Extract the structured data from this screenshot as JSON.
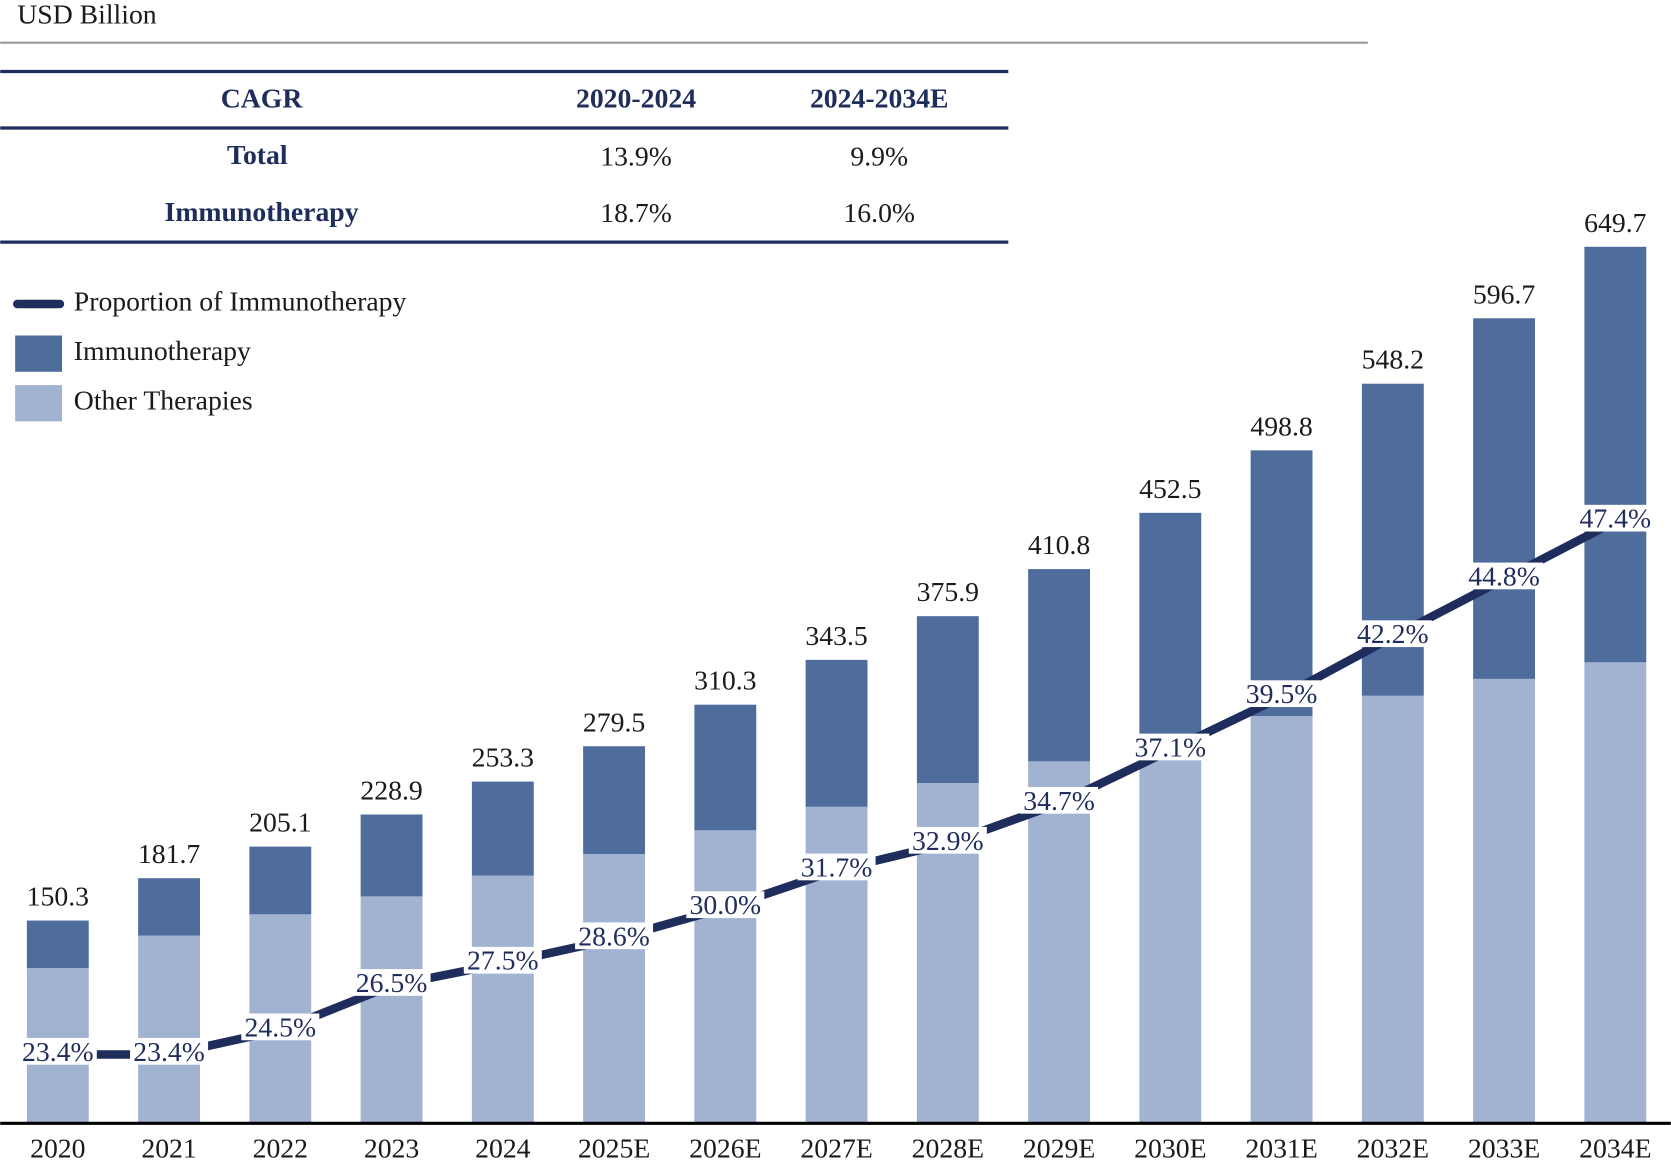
{
  "table": {
    "header": [
      "CAGR",
      "2020-2024",
      "2024-2034E"
    ],
    "rows": [
      [
        "Total",
        "13.9%",
        "9.9%"
      ],
      [
        "Immunotherapy",
        "18.7%",
        "16.0%"
      ]
    ]
  },
  "chart_data": {
    "type": "bar",
    "ylabel": "USD Billion",
    "stacked": true,
    "categories": [
      "2020",
      "2021",
      "2022",
      "2023",
      "2024",
      "2025E",
      "2026E",
      "2027E",
      "2028E",
      "2029E",
      "2030E",
      "2031E",
      "2032E",
      "2033E",
      "2034E"
    ],
    "series": [
      {
        "name": "Other Therapies",
        "type": "bar",
        "color": "#a2b3d2",
        "values": [
          115.1,
          139.2,
          154.9,
          168.2,
          183.6,
          199.6,
          217.2,
          234.6,
          252.2,
          268.3,
          284.6,
          301.8,
          316.9,
          329.4,
          341.7
        ]
      },
      {
        "name": "Immunotherapy",
        "type": "bar",
        "color": "#4e6d9c",
        "values": [
          35.2,
          42.5,
          50.2,
          60.7,
          69.7,
          79.9,
          93.1,
          108.9,
          123.7,
          142.5,
          167.9,
          197.0,
          231.3,
          267.3,
          308.0
        ]
      },
      {
        "name": "Proportion of Immunotherapy",
        "type": "line",
        "axis": "y2",
        "color": "#1f2d5c",
        "values": [
          23.4,
          23.4,
          24.5,
          26.5,
          27.5,
          28.6,
          30.0,
          31.7,
          32.9,
          34.7,
          37.1,
          39.5,
          42.2,
          44.8,
          47.4
        ],
        "value_labels": [
          "23.4%",
          "23.4%",
          "24.5%",
          "26.5%",
          "27.5%",
          "28.6%",
          "30.0%",
          "31.7%",
          "32.9%",
          "34.7%",
          "37.1%",
          "39.5%",
          "42.2%",
          "44.8%",
          "47.4%"
        ]
      }
    ],
    "totals": [
      150.3,
      181.7,
      205.1,
      228.9,
      253.3,
      279.5,
      310.3,
      343.5,
      375.9,
      410.8,
      452.5,
      498.8,
      548.2,
      596.7,
      649.7
    ],
    "ylim": [
      0,
      680
    ],
    "y2lim": [
      20.3,
      61.6
    ]
  }
}
